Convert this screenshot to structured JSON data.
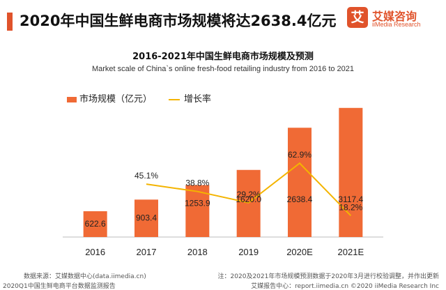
{
  "header": {
    "headline": "2020年中国生鲜电商市场规模将达2638.4亿元",
    "accent_color": "#e0532b"
  },
  "logo": {
    "mark": "艾",
    "name": "艾媒咨询",
    "sub": "iiMedia Research"
  },
  "chart_data": {
    "type": "bar",
    "title": "2016-2021年中国生鲜电商市场规模及预测",
    "subtitle": "Market scale of China`s online fresh-food retailing industry from 2016 to 2021",
    "categories": [
      "2016",
      "2017",
      "2018",
      "2019",
      "2020E",
      "2021E"
    ],
    "series": [
      {
        "name": "市场规模（亿元）",
        "type": "bar",
        "color": "#f06a35",
        "values": [
          622.6,
          903.4,
          1253.9,
          1620.0,
          2638.4,
          3117.4
        ],
        "labels": [
          "622.6",
          "903.4",
          "1253.9",
          "1620.0",
          "2638.4",
          "3117.4"
        ]
      },
      {
        "name": "增长率",
        "type": "line",
        "color": "#f4b400",
        "values": [
          null,
          45.1,
          38.8,
          29.2,
          62.9,
          18.2
        ],
        "labels": [
          "",
          "45.1%",
          "38.8%",
          "29.2%",
          "62.9%",
          "18.2%"
        ]
      }
    ],
    "ylim": [
      0,
      3400
    ],
    "ylim_secondary": [
      0,
      120
    ],
    "grid": false,
    "legend": "top-left"
  },
  "footer": {
    "source": "数据来源：艾媒数据中心(data.iimedia.cn)",
    "note": "注：2020及2021年市场规模预测数据于2020年3月进行校验调整，并作出更新",
    "report": "2020Q1中国生鲜电商平台数据监测报告",
    "copyright": "艾媒报告中心：report.iimedia.cn ©2020  iiMedia Research Inc"
  }
}
